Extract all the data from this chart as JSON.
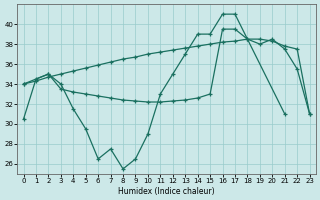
{
  "xlabel": "Humidex (Indice chaleur)",
  "bg_color": "#cce8e8",
  "grid_color": "#99cccc",
  "line_color": "#1a7060",
  "xlim": [
    -0.5,
    23.5
  ],
  "ylim": [
    25,
    42
  ],
  "yticks": [
    26,
    28,
    30,
    32,
    34,
    36,
    38,
    40
  ],
  "xticks": [
    0,
    1,
    2,
    3,
    4,
    5,
    6,
    7,
    8,
    9,
    10,
    11,
    12,
    13,
    14,
    15,
    16,
    17,
    18,
    19,
    20,
    21,
    22,
    23
  ],
  "s1x": [
    0,
    1,
    2,
    3,
    4,
    5,
    6,
    7,
    8,
    9,
    10,
    11,
    12,
    13,
    14,
    15,
    16,
    17,
    21
  ],
  "s1y": [
    30.5,
    34.5,
    35.0,
    34.0,
    31.5,
    29.5,
    26.5,
    27.5,
    25.5,
    26.5,
    29.0,
    33.0,
    35.0,
    37.0,
    39.0,
    39.0,
    41.0,
    41.0,
    31.0
  ],
  "s2x": [
    0,
    2,
    3,
    4,
    5,
    6,
    7,
    8,
    9,
    10,
    11,
    12,
    13,
    14,
    15,
    16,
    17,
    18,
    19,
    20,
    21,
    22,
    23
  ],
  "s2y": [
    34.0,
    35.0,
    33.5,
    33.2,
    33.0,
    32.8,
    32.6,
    32.4,
    32.3,
    32.2,
    32.2,
    32.3,
    32.4,
    32.6,
    33.0,
    39.5,
    39.5,
    38.5,
    38.0,
    38.5,
    37.5,
    35.5,
    31.0
  ],
  "s3x": [
    0,
    1,
    2,
    3,
    4,
    5,
    6,
    7,
    8,
    9,
    10,
    11,
    12,
    13,
    14,
    15,
    16,
    17,
    18,
    19,
    20,
    21,
    22,
    23
  ],
  "s3y": [
    34.0,
    34.3,
    34.7,
    35.0,
    35.3,
    35.6,
    35.9,
    36.2,
    36.5,
    36.7,
    37.0,
    37.2,
    37.4,
    37.6,
    37.8,
    38.0,
    38.2,
    38.3,
    38.5,
    38.5,
    38.3,
    37.8,
    37.5,
    31.0
  ]
}
